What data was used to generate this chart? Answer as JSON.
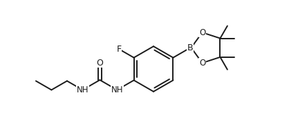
{
  "bg_color": "#ffffff",
  "line_color": "#1a1a1a",
  "line_width": 1.4,
  "font_size": 8.5,
  "figsize": [
    4.18,
    1.9
  ],
  "dpi": 100,
  "xlim": [
    0,
    10.45
  ],
  "ylim": [
    0,
    4.75
  ]
}
